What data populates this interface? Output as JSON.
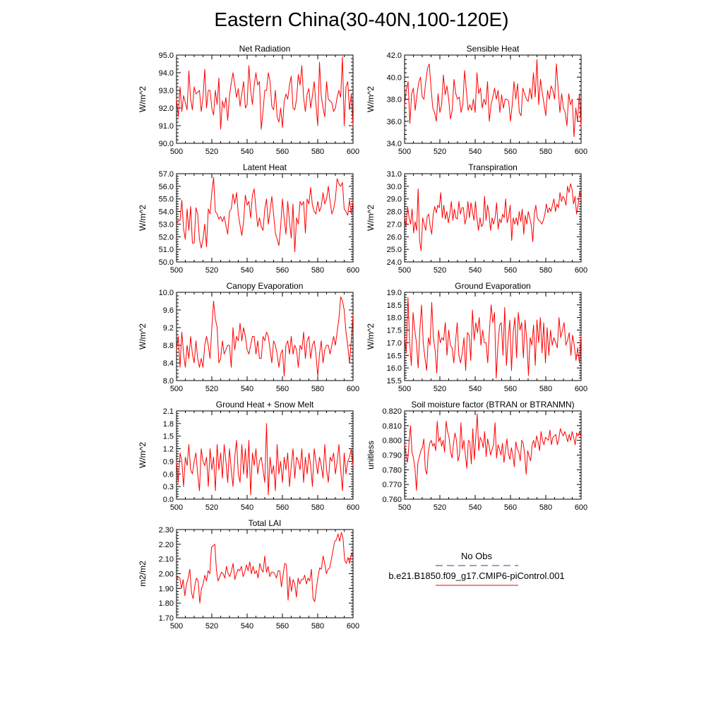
{
  "title": "Eastern China(30-40N,100-120E)",
  "colors": {
    "model": "#ff0000",
    "obs": "#3a3a9a",
    "axis": "#000000"
  },
  "legend": {
    "obs_label": "No Obs",
    "model_label": "b.e21.B1850.f09_g17.CMIP6-piControl.001"
  },
  "chart_data": [
    {
      "type": "line",
      "title": "Net Radiation",
      "ylabel": "W/m^2",
      "xlim": [
        500,
        600
      ],
      "ylim": [
        90.0,
        95.0
      ],
      "xticks": [
        500,
        520,
        540,
        560,
        580,
        600
      ],
      "yticks": [
        "90.0",
        "91.0",
        "92.0",
        "93.0",
        "94.0",
        "95.0"
      ],
      "x_start": 500,
      "x_step": 1,
      "values": [
        92.5,
        91.5,
        93.2,
        91.8,
        92.7,
        92.3,
        91.9,
        94.1,
        92.5,
        91.9,
        93.2,
        92.8,
        92.9,
        93.0,
        91.8,
        92.6,
        94.2,
        92.0,
        93.0,
        93.0,
        92.0,
        91.6,
        93.0,
        92.2,
        93.7,
        90.8,
        92.4,
        92.0,
        92.6,
        91.3,
        92.7,
        93.4,
        94.0,
        93.3,
        92.6,
        93.1,
        92.1,
        92.8,
        93.5,
        92.0,
        92.2,
        94.4,
        93.0,
        92.2,
        93.3,
        94.0,
        93.3,
        93.5,
        90.8,
        91.8,
        93.0,
        93.0,
        94.0,
        93.5,
        92.1,
        91.9,
        93.0,
        91.5,
        91.2,
        92.0,
        90.9,
        92.4,
        92.8,
        92.5,
        93.3,
        93.8,
        92.0,
        91.9,
        92.5,
        93.9,
        93.3,
        94.4,
        92.6,
        91.8,
        92.8,
        93.1,
        92.0,
        92.7,
        93.5,
        92.2,
        91.0,
        94.6,
        92.7,
        92.0,
        91.5,
        93.5,
        92.5,
        92.4,
        92.3,
        91.8,
        92.0,
        92.6,
        93.0,
        92.6,
        94.9,
        91.0,
        93.2,
        93.5,
        91.9,
        92.8,
        91.0
      ]
    },
    {
      "type": "line",
      "title": "Sensible Heat",
      "ylabel": "W/m^2",
      "xlim": [
        500,
        600
      ],
      "ylim": [
        34.0,
        42.0
      ],
      "xticks": [
        500,
        520,
        540,
        560,
        580,
        600
      ],
      "yticks": [
        "34.0",
        "36.0",
        "38.0",
        "40.0",
        "42.0"
      ],
      "x_start": 500,
      "x_step": 1,
      "values": [
        37.5,
        38.8,
        39.6,
        35.8,
        38.5,
        39.0,
        37.0,
        38.4,
        39.5,
        40.0,
        38.2,
        38.0,
        39.6,
        40.8,
        41.2,
        39.0,
        37.2,
        36.8,
        36.0,
        38.5,
        36.8,
        37.5,
        40.2,
        38.4,
        39.2,
        38.0,
        36.2,
        37.0,
        39.8,
        38.5,
        38.0,
        38.2,
        36.8,
        37.5,
        40.6,
        38.8,
        37.0,
        37.5,
        37.0,
        38.0,
        36.8,
        40.4,
        38.5,
        39.0,
        37.2,
        38.0,
        37.5,
        39.6,
        36.0,
        37.5,
        38.2,
        39.0,
        38.0,
        38.8,
        36.8,
        38.4,
        37.2,
        38.0,
        38.0,
        37.8,
        36.0,
        37.5,
        39.6,
        38.0,
        39.4,
        36.8,
        36.5,
        39.0,
        38.5,
        38.0,
        37.8,
        39.0,
        38.0,
        40.4,
        38.2,
        41.6,
        37.5,
        39.8,
        38.6,
        37.6,
        36.5,
        38.8,
        38.0,
        39.2,
        38.8,
        38.0,
        41.2,
        39.0,
        36.8,
        38.5,
        37.2,
        36.8,
        35.6,
        38.5,
        37.5,
        38.0,
        34.6,
        37.2,
        36.0,
        38.5,
        35.5
      ]
    },
    {
      "type": "line",
      "title": "Latent Heat",
      "ylabel": "W/m^2",
      "xlim": [
        500,
        600
      ],
      "ylim": [
        50.0,
        57.0
      ],
      "xticks": [
        500,
        520,
        540,
        560,
        580,
        600
      ],
      "yticks": [
        "50.0",
        "51.0",
        "52.0",
        "53.0",
        "54.0",
        "55.0",
        "56.0",
        "57.0"
      ],
      "x_start": 500,
      "x_step": 1,
      "values": [
        53.0,
        53.3,
        53.3,
        54.9,
        52.6,
        51.8,
        54.2,
        52.5,
        54.4,
        51.5,
        51.5,
        54.3,
        53.8,
        51.8,
        51.1,
        51.8,
        53.0,
        51.2,
        54.2,
        53.8,
        55.5,
        56.7,
        54.0,
        53.8,
        53.4,
        53.6,
        53.2,
        53.6,
        52.9,
        52.2,
        54.0,
        54.2,
        55.4,
        54.6,
        55.5,
        53.8,
        52.9,
        52.1,
        53.2,
        55.3,
        54.5,
        54.8,
        53.5,
        55.3,
        55.8,
        54.2,
        52.8,
        53.5,
        52.8,
        52.5,
        54.2,
        55.0,
        53.0,
        54.0,
        55.2,
        53.8,
        52.3,
        51.8,
        51.3,
        52.8,
        55.0,
        53.4,
        52.2,
        54.8,
        53.2,
        51.9,
        54.6,
        50.8,
        53.5,
        53.0,
        54.8,
        54.5,
        54.8,
        52.3,
        55.0,
        54.6,
        55.9,
        54.5,
        54.0,
        53.8,
        54.8,
        54.0,
        54.4,
        55.5,
        54.6,
        55.0,
        56.0,
        54.8,
        53.8,
        54.2,
        55.0,
        56.6,
        56.2,
        56.0,
        56.3,
        54.2,
        54.0,
        53.7,
        54.9,
        53.8,
        54.8
      ]
    },
    {
      "type": "line",
      "title": "Transpiration",
      "ylabel": "W/m^2",
      "xlim": [
        500,
        600
      ],
      "ylim": [
        24.0,
        31.0
      ],
      "xticks": [
        500,
        520,
        540,
        560,
        580,
        600
      ],
      "yticks": [
        "24.0",
        "25.0",
        "26.0",
        "27.0",
        "28.0",
        "29.0",
        "30.0",
        "31.0"
      ],
      "x_start": 500,
      "x_step": 1,
      "values": [
        27.5,
        26.8,
        28.4,
        27.5,
        27.0,
        28.2,
        26.3,
        27.2,
        26.5,
        29.8,
        25.6,
        24.9,
        27.5,
        27.0,
        26.5,
        27.6,
        27.8,
        26.8,
        26.2,
        27.8,
        28.4,
        27.9,
        28.5,
        28.3,
        29.5,
        27.5,
        28.5,
        27.4,
        28.0,
        27.1,
        27.8,
        28.8,
        27.3,
        28.2,
        27.5,
        27.4,
        28.8,
        27.8,
        28.3,
        28.3,
        27.0,
        27.5,
        28.8,
        27.5,
        28.7,
        28.0,
        27.3,
        28.8,
        27.4,
        26.5,
        27.5,
        26.8,
        27.0,
        29.2,
        27.3,
        28.5,
        27.8,
        26.5,
        27.5,
        27.0,
        27.5,
        28.7,
        26.6,
        27.4,
        27.1,
        27.8,
        27.5,
        29.0,
        27.1,
        27.6,
        28.5,
        25.7,
        27.5,
        27.0,
        27.5,
        26.9,
        28.0,
        27.2,
        28.2,
        26.2,
        27.7,
        27.0,
        28.0,
        27.5,
        26.9,
        25.6,
        27.8,
        28.5,
        27.5,
        27.3,
        27.2,
        27.0,
        27.3,
        27.8,
        28.6,
        27.9,
        28.3,
        28.0,
        28.5,
        29.0,
        28.0,
        28.6,
        28.3,
        29.5,
        28.8,
        29.2,
        29.0,
        28.5,
        30.0,
        29.5,
        30.2,
        29.8,
        28.6,
        29.2,
        27.8,
        28.5,
        29.6,
        29.0
      ]
    },
    {
      "type": "line",
      "title": "Canopy Evaporation",
      "ylabel": "W/m^2",
      "xlim": [
        500,
        600
      ],
      "ylim": [
        8.0,
        10.0
      ],
      "xticks": [
        500,
        520,
        540,
        560,
        580,
        600
      ],
      "yticks": [
        "8.0",
        "8.4",
        "8.8",
        "9.2",
        "9.6",
        "10.0"
      ],
      "x_start": 500,
      "x_step": 1,
      "values": [
        8.7,
        9.0,
        8.3,
        9.1,
        8.6,
        8.3,
        8.8,
        8.5,
        9.0,
        8.6,
        8.4,
        8.9,
        8.5,
        8.3,
        8.5,
        8.3,
        8.8,
        9.0,
        8.8,
        8.5,
        9.2,
        9.8,
        9.4,
        9.2,
        8.4,
        8.5,
        8.9,
        8.6,
        8.7,
        8.8,
        8.8,
        8.3,
        9.2,
        8.7,
        9.0,
        8.9,
        9.3,
        8.9,
        9.2,
        9.0,
        8.7,
        8.6,
        8.8,
        9.0,
        9.0,
        8.6,
        8.9,
        8.5,
        8.5,
        9.0,
        8.9,
        9.1,
        9.0,
        8.7,
        8.4,
        8.9,
        8.8,
        8.6,
        8.3,
        8.6,
        8.7,
        8.1,
        8.8,
        8.9,
        8.6,
        9.0,
        8.6,
        8.8,
        8.7,
        8.3,
        8.8,
        8.7,
        9.1,
        8.5,
        8.9,
        9.0,
        8.5,
        8.8,
        8.9,
        8.6,
        8.1,
        8.6,
        8.9,
        8.4,
        8.7,
        8.8,
        8.8,
        8.6,
        8.8,
        9.0,
        8.8,
        9.1,
        9.4,
        9.9,
        9.8,
        9.6,
        9.1,
        8.8,
        8.4,
        8.9,
        9.5
      ]
    },
    {
      "type": "line",
      "title": "Ground Evaporation",
      "ylabel": "W/m^2",
      "xlim": [
        500,
        600
      ],
      "ylim": [
        15.5,
        19.0
      ],
      "xticks": [
        500,
        520,
        540,
        560,
        580,
        600
      ],
      "yticks": [
        "15.5",
        "16.0",
        "16.5",
        "17.0",
        "17.5",
        "18.0",
        "18.5",
        "19.0"
      ],
      "x_start": 500,
      "x_step": 1,
      "values": [
        17.2,
        16.6,
        18.8,
        17.0,
        16.1,
        18.2,
        17.5,
        17.0,
        16.0,
        17.5,
        18.5,
        17.0,
        16.4,
        15.9,
        17.2,
        16.9,
        18.6,
        17.2,
        16.7,
        15.8,
        17.5,
        17.0,
        17.2,
        17.1,
        17.8,
        16.5,
        17.5,
        16.9,
        16.8,
        16.2,
        17.0,
        17.8,
        16.5,
        16.2,
        16.6,
        17.2,
        15.9,
        17.4,
        17.3,
        16.3,
        18.3,
        17.1,
        17.8,
        17.4,
        18.0,
        16.9,
        17.5,
        17.0,
        17.0,
        16.2,
        17.5,
        18.5,
        17.8,
        18.2,
        15.6,
        16.9,
        17.7,
        17.8,
        16.5,
        18.4,
        16.1,
        17.1,
        17.9,
        15.9,
        17.4,
        18.0,
        16.4,
        18.2,
        17.5,
        17.8,
        16.4,
        17.9,
        17.1,
        15.7,
        17.2,
        16.9,
        17.7,
        16.1,
        17.9,
        17.0,
        18.0,
        16.6,
        17.8,
        16.2,
        17.6,
        16.5,
        17.5,
        16.9,
        17.2,
        17.0,
        16.8,
        18.0,
        17.2,
        17.5,
        17.8,
        16.9,
        17.1,
        17.4,
        16.5,
        17.3,
        16.9,
        16.3,
        16.8,
        16.2,
        17.3
      ]
    },
    {
      "type": "line",
      "title": "Ground Heat + Snow Melt",
      "ylabel": "W/m^2",
      "xlim": [
        500,
        600
      ],
      "ylim": [
        0.0,
        2.1
      ],
      "xticks": [
        500,
        520,
        540,
        560,
        580,
        600
      ],
      "yticks": [
        "0.0",
        "0.3",
        "0.6",
        "0.9",
        "1.2",
        "1.5",
        "1.8",
        "2.1"
      ],
      "x_start": 500,
      "x_step": 1,
      "values": [
        0.9,
        0.4,
        1.1,
        0.9,
        0.3,
        1.0,
        0.8,
        1.3,
        0.7,
        0.6,
        0.9,
        1.1,
        0.6,
        0.2,
        1.2,
        0.9,
        0.8,
        1.0,
        0.3,
        1.2,
        0.7,
        1.0,
        0.2,
        1.3,
        0.7,
        1.1,
        0.5,
        1.3,
        0.9,
        0.4,
        1.2,
        0.7,
        0.3,
        1.0,
        1.4,
        0.6,
        0.4,
        1.3,
        0.6,
        1.2,
        0.5,
        1.4,
        0.1,
        1.1,
        0.8,
        1.2,
        0.6,
        0.9,
        1.0,
        0.7,
        0.4,
        1.8,
        0.1,
        1.0,
        0.6,
        0.8,
        0.2,
        1.3,
        0.6,
        0.9,
        0.4,
        1.0,
        0.7,
        1.1,
        0.3,
        0.8,
        1.2,
        0.5,
        1.0,
        0.9,
        0.7,
        1.2,
        0.4,
        1.0,
        0.6,
        1.1,
        0.8,
        0.3,
        1.2,
        0.9,
        0.6,
        1.0,
        0.8,
        0.5,
        1.3,
        0.7,
        0.4,
        1.0,
        0.9,
        1.1,
        0.6,
        0.9,
        1.3,
        0.7,
        0.2,
        1.1,
        0.6,
        0.9,
        1.0,
        1.2,
        0.8
      ]
    },
    {
      "type": "line",
      "title": "Soil moisture factor (BTRAN or BTRANMN)",
      "ylabel": "unitless",
      "xlim": [
        500,
        600
      ],
      "ylim": [
        0.76,
        0.82
      ],
      "xticks": [
        500,
        520,
        540,
        560,
        580,
        600
      ],
      "yticks": [
        "0.760",
        "0.770",
        "0.780",
        "0.790",
        "0.800",
        "0.810",
        "0.820"
      ],
      "x_start": 500,
      "x_step": 1,
      "values": [
        0.797,
        0.79,
        0.785,
        0.798,
        0.81,
        0.792,
        0.788,
        0.781,
        0.766,
        0.785,
        0.789,
        0.793,
        0.795,
        0.801,
        0.78,
        0.777,
        0.792,
        0.798,
        0.8,
        0.796,
        0.798,
        0.793,
        0.813,
        0.799,
        0.802,
        0.796,
        0.8,
        0.792,
        0.813,
        0.806,
        0.802,
        0.792,
        0.788,
        0.798,
        0.805,
        0.8,
        0.786,
        0.79,
        0.812,
        0.794,
        0.8,
        0.79,
        0.781,
        0.8,
        0.799,
        0.784,
        0.808,
        0.787,
        0.802,
        0.818,
        0.793,
        0.802,
        0.8,
        0.795,
        0.806,
        0.789,
        0.801,
        0.796,
        0.79,
        0.794,
        0.797,
        0.812,
        0.788,
        0.797,
        0.794,
        0.79,
        0.798,
        0.785,
        0.793,
        0.801,
        0.791,
        0.787,
        0.795,
        0.79,
        0.782,
        0.799,
        0.794,
        0.792,
        0.786,
        0.8,
        0.798,
        0.79,
        0.777,
        0.793,
        0.789,
        0.786,
        0.797,
        0.8,
        0.795,
        0.803,
        0.799,
        0.793,
        0.806,
        0.8,
        0.797,
        0.802,
        0.801,
        0.8,
        0.807,
        0.797,
        0.802,
        0.803,
        0.804,
        0.797,
        0.801,
        0.808,
        0.805,
        0.803,
        0.806,
        0.803,
        0.799,
        0.804,
        0.8,
        0.806,
        0.802,
        0.797,
        0.805,
        0.803,
        0.806,
        0.802
      ]
    },
    {
      "type": "line",
      "title": "Total LAI",
      "ylabel": "m2/m2",
      "xlim": [
        500,
        600
      ],
      "ylim": [
        1.7,
        2.3
      ],
      "xticks": [
        500,
        520,
        540,
        560,
        580,
        600
      ],
      "yticks": [
        "1.70",
        "1.80",
        "1.90",
        "2.00",
        "2.10",
        "2.20",
        "2.30"
      ],
      "x_start": 500,
      "x_step": 1,
      "values": [
        1.96,
        1.98,
        1.97,
        1.9,
        1.96,
        1.85,
        1.93,
        1.97,
        2.03,
        1.87,
        1.83,
        1.92,
        1.97,
        1.95,
        1.8,
        1.9,
        1.93,
        1.99,
        1.95,
        2.02,
        2.0,
        2.18,
        2.19,
        2.2,
        2.02,
        1.95,
        1.98,
        2.01,
        2.0,
        1.97,
        2.05,
        2.0,
        1.98,
        2.02,
        2.07,
        1.96,
        2.0,
        2.03,
        2.02,
        2.05,
        1.98,
        2.01,
        2.06,
        2.02,
        2.08,
        2.0,
        2.05,
        2.0,
        2.02,
        1.97,
        2.07,
        2.03,
        2.01,
        2.12,
        2.01,
        2.05,
        1.98,
        2.01,
        2.01,
        2.0,
        1.97,
        2.02,
        2.02,
        1.91,
        1.99,
        2.07,
        2.06,
        1.82,
        1.98,
        1.88,
        1.96,
        1.93,
        1.84,
        1.97,
        1.93,
        1.96,
        1.96,
        1.99,
        1.93,
        1.97,
        1.95,
        2.03,
        1.83,
        1.81,
        1.9,
        1.98,
        2.04,
        2.03,
        2.12,
        2.07,
        2.0,
        2.03,
        2.04,
        2.1,
        2.16,
        2.22,
        2.23,
        2.27,
        2.22,
        2.28,
        2.24,
        2.09,
        2.07,
        2.11,
        2.07,
        2.14,
        2.12
      ]
    }
  ]
}
